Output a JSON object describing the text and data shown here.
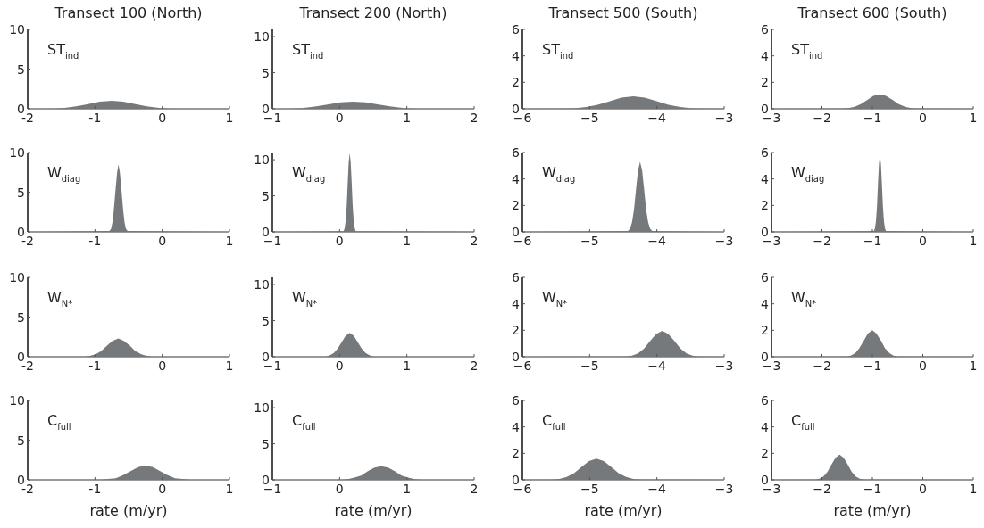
{
  "chart_data": [
    {
      "type": "area",
      "title": "Transect 100 (North)",
      "annotations": [
        "ST$_{ind}$"
      ],
      "xlim": [
        -2,
        1
      ],
      "ylim": [
        0,
        10
      ],
      "xticks": [
        -2,
        -1,
        0,
        1
      ],
      "yticks": [
        0,
        5,
        10
      ],
      "color": "#76797b",
      "x": [
        -2,
        -1.8,
        -1.63,
        -1.45,
        -1.28,
        -1.1,
        -0.93,
        -0.75,
        -0.58,
        -0.4,
        -0.23,
        -0.05,
        0.13,
        0.3,
        1
      ],
      "values": [
        0,
        0,
        0,
        0.1,
        0.3,
        0.6,
        0.9,
        1,
        0.9,
        0.6,
        0.3,
        0.1,
        0,
        0,
        0
      ]
    },
    {
      "type": "area",
      "title": "Transect 200 (North)",
      "annotations": [
        "ST$_{ind}$"
      ],
      "xlim": [
        -1,
        2
      ],
      "ylim": [
        0,
        11
      ],
      "xticks": [
        {
          "value": -1,
          "label": "−1"
        },
        0,
        1,
        2
      ],
      "yticks": [
        0,
        5,
        10
      ],
      "color": "#76797b",
      "x": [
        -1,
        -0.94,
        -0.75,
        -0.56,
        -0.37,
        -0.18,
        0.01,
        0.2,
        0.39,
        0.58,
        0.77,
        0.96,
        1.15,
        1.34,
        2
      ],
      "values": [
        0,
        0,
        0,
        0.1,
        0.3,
        0.6,
        0.9,
        1,
        0.9,
        0.6,
        0.3,
        0.1,
        0,
        0,
        0
      ]
    },
    {
      "type": "area",
      "title": "Transect 500 (South)",
      "annotations": [
        "ST$_{ind}$"
      ],
      "xlim": [
        -6,
        -3
      ],
      "ylim": [
        0,
        6
      ],
      "xticks": [
        {
          "value": -6,
          "label": "−6"
        },
        {
          "value": -5,
          "label": "−5"
        },
        {
          "value": -4,
          "label": "−4"
        },
        {
          "value": -3,
          "label": "−3"
        }
      ],
      "yticks": [
        0,
        2,
        4,
        6
      ],
      "color": "#76797b",
      "x": [
        -6,
        -5.4,
        -5.23,
        -5.05,
        -4.88,
        -4.7,
        -4.53,
        -4.35,
        -4.18,
        -4,
        -3.83,
        -3.65,
        -3.48,
        -3.3,
        -3
      ],
      "values": [
        0,
        0.01,
        0.04,
        0.13,
        0.3,
        0.58,
        0.84,
        0.95,
        0.84,
        0.58,
        0.3,
        0.13,
        0.04,
        0.01,
        0
      ]
    },
    {
      "type": "area",
      "title": "Transect 600 (South)",
      "annotations": [
        "ST$_{ind}$"
      ],
      "xlim": [
        -3,
        1
      ],
      "ylim": [
        0,
        6
      ],
      "xticks": [
        {
          "value": -3,
          "label": "−3"
        },
        {
          "value": -2,
          "label": "−2"
        },
        {
          "value": -1,
          "label": "−1"
        },
        0,
        1
      ],
      "yticks": [
        0,
        2,
        4,
        6
      ],
      "color": "#76797b",
      "x": [
        -3,
        -1.6,
        -1.48,
        -1.35,
        -1.23,
        -1.1,
        -0.98,
        -0.85,
        -0.73,
        -0.6,
        -0.48,
        -0.35,
        -0.23,
        -0.1,
        1
      ],
      "values": [
        0,
        0.01,
        0.05,
        0.15,
        0.35,
        0.67,
        0.97,
        1.1,
        0.97,
        0.67,
        0.35,
        0.15,
        0.05,
        0.01,
        0
      ]
    },
    {
      "type": "area",
      "annotations": [
        "W$_{diag}$"
      ],
      "xlim": [
        -2,
        1
      ],
      "ylim": [
        0,
        10
      ],
      "xticks": [
        -2,
        -1,
        0,
        1
      ],
      "yticks": [
        0,
        5,
        10
      ],
      "color": "#76797b",
      "x": [
        -2,
        -0.785,
        -0.76,
        -0.74,
        -0.72,
        -0.695,
        -0.67,
        -0.65,
        -0.63,
        -0.605,
        -0.58,
        -0.56,
        -0.54,
        -0.515,
        1
      ],
      "values": [
        0,
        0.1,
        0.4,
        1.2,
        2.7,
        5.2,
        7.5,
        8.5,
        7.5,
        5.2,
        2.7,
        1.2,
        0.4,
        0.1,
        0
      ]
    },
    {
      "type": "area",
      "annotations": [
        "W$_{diag}$"
      ],
      "xlim": [
        -1,
        2
      ],
      "ylim": [
        0,
        11
      ],
      "xticks": [
        {
          "value": -1,
          "label": "−1"
        },
        0,
        1,
        2
      ],
      "yticks": [
        0,
        5,
        10
      ],
      "color": "#76797b",
      "x": [
        -1,
        0.06,
        0.075,
        0.09,
        0.105,
        0.12,
        0.135,
        0.15,
        0.165,
        0.18,
        0.195,
        0.21,
        0.225,
        0.24,
        2
      ],
      "values": [
        0,
        0.1,
        0.5,
        1.5,
        3.5,
        6.7,
        9.6,
        10.9,
        9.6,
        6.7,
        3.5,
        1.5,
        0.5,
        0.1,
        0
      ]
    },
    {
      "type": "area",
      "annotations": [
        "W$_{diag}$"
      ],
      "xlim": [
        -6,
        -3
      ],
      "ylim": [
        0,
        6
      ],
      "xticks": [
        {
          "value": -6,
          "label": "−6"
        },
        {
          "value": -5,
          "label": "−5"
        },
        {
          "value": -4,
          "label": "−4"
        },
        {
          "value": -3,
          "label": "−3"
        }
      ],
      "yticks": [
        0,
        2,
        4,
        6
      ],
      "color": "#76797b",
      "x": [
        -6,
        -4.43,
        -4.4,
        -4.37,
        -4.34,
        -4.31,
        -4.28,
        -4.25,
        -4.22,
        -4.19,
        -4.16,
        -4.13,
        -4.1,
        -4.07,
        -3
      ],
      "values": [
        0,
        0.06,
        0.23,
        0.72,
        1.7,
        3.23,
        4.66,
        5.3,
        4.66,
        3.23,
        1.7,
        0.72,
        0.23,
        0.06,
        0
      ]
    },
    {
      "type": "area",
      "annotations": [
        "W$_{diag}$"
      ],
      "xlim": [
        -3,
        1
      ],
      "ylim": [
        0,
        6
      ],
      "xticks": [
        {
          "value": -3,
          "label": "−3"
        },
        {
          "value": -2,
          "label": "−2"
        },
        {
          "value": -1,
          "label": "−1"
        },
        0,
        1
      ],
      "yticks": [
        0,
        2,
        4,
        6
      ],
      "color": "#76797b",
      "x": [
        -3,
        -0.97,
        -0.95,
        -0.93,
        -0.91,
        -0.89,
        -0.87,
        -0.85,
        -0.83,
        -0.81,
        -0.79,
        -0.77,
        -0.75,
        -0.73,
        1
      ],
      "values": [
        0,
        0.06,
        0.26,
        0.78,
        1.86,
        3.54,
        5.1,
        5.8,
        5.1,
        3.54,
        1.86,
        0.78,
        0.26,
        0.06,
        0
      ]
    },
    {
      "type": "area",
      "annotations": [
        "W$_{N*}$"
      ],
      "xlim": [
        -2,
        1
      ],
      "ylim": [
        0,
        10
      ],
      "xticks": [
        -2,
        -1,
        0,
        1
      ],
      "yticks": [
        0,
        5,
        10
      ],
      "color": "#76797b",
      "x": [
        -2,
        -1.16,
        -1.08,
        -0.99,
        -0.91,
        -0.82,
        -0.74,
        -0.65,
        -0.57,
        -0.48,
        -0.4,
        -0.31,
        -0.23,
        -0.14,
        1
      ],
      "values": [
        0,
        0,
        0.1,
        0.3,
        0.7,
        1.4,
        2,
        2.3,
        2,
        1.4,
        0.7,
        0.3,
        0.1,
        0,
        0
      ]
    },
    {
      "type": "area",
      "annotations": [
        "W$_{N*}$"
      ],
      "xlim": [
        -1,
        2
      ],
      "ylim": [
        0,
        11
      ],
      "xticks": [
        {
          "value": -1,
          "label": "−1"
        },
        0,
        1,
        2
      ],
      "yticks": [
        0,
        5,
        10
      ],
      "color": "#76797b",
      "x": [
        -1,
        -0.21,
        -0.15,
        -0.09,
        -0.03,
        0.03,
        0.09,
        0.15,
        0.21,
        0.27,
        0.33,
        0.39,
        0.45,
        0.51,
        2
      ],
      "values": [
        0,
        0,
        0.2,
        0.5,
        1.1,
        2,
        2.9,
        3.3,
        2.9,
        2,
        1.1,
        0.5,
        0.2,
        0,
        0
      ]
    },
    {
      "type": "area",
      "annotations": [
        "W$_{N*}$"
      ],
      "xlim": [
        -6,
        -3
      ],
      "ylim": [
        0,
        6
      ],
      "xticks": [
        {
          "value": -6,
          "label": "−6"
        },
        {
          "value": -5,
          "label": "−5"
        },
        {
          "value": -4,
          "label": "−4"
        },
        {
          "value": -3,
          "label": "−3"
        }
      ],
      "yticks": [
        0,
        2,
        4,
        6
      ],
      "color": "#76797b",
      "x": [
        -6,
        -4.46,
        -4.37,
        -4.28,
        -4.19,
        -4.1,
        -4.01,
        -3.92,
        -3.83,
        -3.74,
        -3.65,
        -3.56,
        -3.47,
        -3.38,
        -3
      ],
      "values": [
        0,
        0.02,
        0.09,
        0.26,
        0.62,
        1.19,
        1.72,
        1.95,
        1.72,
        1.19,
        0.62,
        0.26,
        0.09,
        0.02,
        0
      ]
    },
    {
      "type": "area",
      "annotations": [
        "W$_{N*}$"
      ],
      "xlim": [
        -3,
        1
      ],
      "ylim": [
        0,
        6
      ],
      "xticks": [
        {
          "value": -3,
          "label": "−3"
        },
        {
          "value": -2,
          "label": "−2"
        },
        {
          "value": -1,
          "label": "−1"
        },
        0,
        1
      ],
      "yticks": [
        0,
        2,
        4,
        6
      ],
      "color": "#76797b",
      "x": [
        -3,
        -1.51,
        -1.43,
        -1.34,
        -1.26,
        -1.17,
        -1.09,
        -1,
        -0.92,
        -0.83,
        -0.75,
        -0.66,
        -0.58,
        -0.49,
        1
      ],
      "values": [
        0,
        0.02,
        0.09,
        0.27,
        0.64,
        1.22,
        1.76,
        2,
        1.76,
        1.22,
        0.64,
        0.27,
        0.09,
        0.02,
        0
      ]
    },
    {
      "type": "area",
      "xlabel": "rate (m/yr)",
      "annotations": [
        "C$_{full}$"
      ],
      "xlim": [
        -2,
        1
      ],
      "ylim": [
        0,
        10
      ],
      "xticks": [
        -2,
        -1,
        0,
        1
      ],
      "yticks": [
        0,
        5,
        10
      ],
      "color": "#76797b",
      "x": [
        -2,
        -0.91,
        -0.8,
        -0.69,
        -0.58,
        -0.47,
        -0.36,
        -0.25,
        -0.14,
        -0.03,
        0.08,
        0.19,
        0.3,
        0.41,
        1
      ],
      "values": [
        0,
        0,
        0.1,
        0.2,
        0.6,
        1.1,
        1.6,
        1.8,
        1.6,
        1.1,
        0.6,
        0.2,
        0.1,
        0,
        0
      ]
    },
    {
      "type": "area",
      "xlabel": "rate (m/yr)",
      "annotations": [
        "C$_{full}$"
      ],
      "xlim": [
        -1,
        2
      ],
      "ylim": [
        0,
        11
      ],
      "xticks": [
        {
          "value": -1,
          "label": "−1"
        },
        0,
        1,
        2
      ],
      "yticks": [
        0,
        5,
        10
      ],
      "color": "#76797b",
      "x": [
        -1,
        0.02,
        0.12,
        0.22,
        0.32,
        0.42,
        0.52,
        0.62,
        0.72,
        0.82,
        0.92,
        1.02,
        1.12,
        1.22,
        2
      ],
      "values": [
        0,
        0,
        0.1,
        0.3,
        0.6,
        1.2,
        1.7,
        1.9,
        1.7,
        1.2,
        0.6,
        0.3,
        0.1,
        0,
        0
      ]
    },
    {
      "type": "area",
      "xlabel": "rate (m/yr)",
      "annotations": [
        "C$_{full}$"
      ],
      "xlim": [
        -6,
        -3
      ],
      "ylim": [
        0,
        6
      ],
      "xticks": [
        {
          "value": -6,
          "label": "−6"
        },
        {
          "value": -5,
          "label": "−5"
        },
        {
          "value": -4,
          "label": "−4"
        },
        {
          "value": -3,
          "label": "−3"
        }
      ],
      "yticks": [
        0,
        2,
        4,
        6
      ],
      "color": "#76797b",
      "x": [
        -6,
        -5.56,
        -5.45,
        -5.34,
        -5.23,
        -5.12,
        -5.01,
        -4.9,
        -4.79,
        -4.68,
        -4.57,
        -4.46,
        -4.35,
        -4.24,
        -3
      ],
      "values": [
        0,
        0.02,
        0.07,
        0.22,
        0.51,
        0.98,
        1.41,
        1.6,
        1.41,
        0.98,
        0.51,
        0.22,
        0.07,
        0.02,
        0
      ]
    },
    {
      "type": "area",
      "xlabel": "rate (m/yr)",
      "annotations": [
        "C$_{full}$"
      ],
      "xlim": [
        -3,
        1
      ],
      "ylim": [
        0,
        6
      ],
      "xticks": [
        {
          "value": -3,
          "label": "−3"
        },
        {
          "value": -2,
          "label": "−2"
        },
        {
          "value": -1,
          "label": "−1"
        },
        0,
        1
      ],
      "yticks": [
        0,
        2,
        4,
        6
      ],
      "color": "#76797b",
      "x": [
        -3,
        -2.13,
        -2.05,
        -1.97,
        -1.89,
        -1.81,
        -1.73,
        -1.65,
        -1.57,
        -1.49,
        -1.41,
        -1.33,
        -1.25,
        -1.17,
        1
      ],
      "values": [
        0,
        0.02,
        0.08,
        0.26,
        0.61,
        1.16,
        1.67,
        1.9,
        1.67,
        1.16,
        0.61,
        0.26,
        0.08,
        0.02,
        0
      ]
    }
  ]
}
